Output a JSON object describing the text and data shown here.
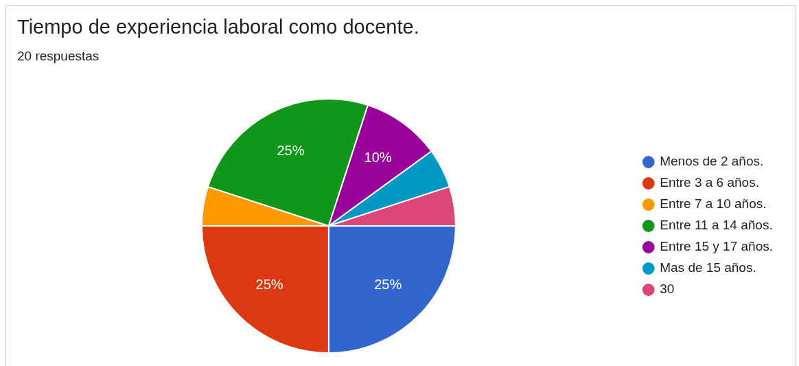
{
  "chart_data": {
    "type": "pie",
    "title": "Tiempo de experiencia laboral como docente.",
    "subtitle": "20 respuestas",
    "categories": [
      "Menos de 2 años.",
      "Entre 3 a 6 años.",
      "Entre 7 a 10 años.",
      "Entre 11 a 14 años.",
      "Entre 15 y 17 años.",
      "Mas de 15 años.",
      "30"
    ],
    "values": [
      25,
      25,
      5,
      25,
      10,
      5,
      5
    ],
    "colors": [
      "#3366cc",
      "#dc3912",
      "#ff9900",
      "#109618",
      "#990099",
      "#0099c6",
      "#dd4477"
    ],
    "value_labels": [
      "25%",
      "25%",
      null,
      "25%",
      "10%",
      null,
      null
    ],
    "legend": "right"
  }
}
